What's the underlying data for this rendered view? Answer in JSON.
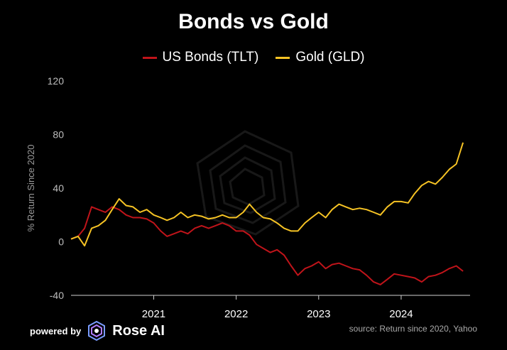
{
  "chart_data": {
    "type": "line",
    "title": "Bonds vs Gold",
    "ylabel": "% Return Since 2020",
    "xlabel": "",
    "ylim": [
      -40,
      120
    ],
    "yticks": [
      -40,
      0,
      40,
      80,
      120
    ],
    "xticks": [
      "2021",
      "2022",
      "2023",
      "2024"
    ],
    "legend_position": "top-center",
    "grid": false,
    "series": [
      {
        "name": "US Bonds (TLT)",
        "color": "#c0141a",
        "x": [
          "2020-01",
          "2020-02",
          "2020-03",
          "2020-04",
          "2020-05",
          "2020-06",
          "2020-07",
          "2020-08",
          "2020-09",
          "2020-10",
          "2020-11",
          "2020-12",
          "2021-01",
          "2021-02",
          "2021-03",
          "2021-04",
          "2021-05",
          "2021-06",
          "2021-07",
          "2021-08",
          "2021-09",
          "2021-10",
          "2021-11",
          "2021-12",
          "2022-01",
          "2022-02",
          "2022-03",
          "2022-04",
          "2022-05",
          "2022-06",
          "2022-07",
          "2022-08",
          "2022-09",
          "2022-10",
          "2022-11",
          "2022-12",
          "2023-01",
          "2023-02",
          "2023-03",
          "2023-04",
          "2023-05",
          "2023-06",
          "2023-07",
          "2023-08",
          "2023-09",
          "2023-10",
          "2023-11",
          "2023-12",
          "2024-01",
          "2024-02",
          "2024-03",
          "2024-04",
          "2024-05",
          "2024-06",
          "2024-07",
          "2024-08",
          "2024-09",
          "2024-10"
        ],
        "values": [
          2,
          4,
          10,
          26,
          24,
          22,
          26,
          24,
          20,
          18,
          18,
          17,
          14,
          8,
          4,
          6,
          8,
          6,
          10,
          12,
          10,
          12,
          14,
          12,
          8,
          8,
          5,
          -2,
          -5,
          -8,
          -6,
          -10,
          -18,
          -25,
          -20,
          -18,
          -15,
          -20,
          -17,
          -16,
          -18,
          -20,
          -21,
          -25,
          -30,
          -32,
          -28,
          -24,
          -25,
          -26,
          -27,
          -30,
          -26,
          -25,
          -23,
          -20,
          -18,
          -22
        ],
        "ylabel_series": ""
      },
      {
        "name": "Gold (GLD)",
        "color": "#f6c324",
        "x": [
          "2020-01",
          "2020-02",
          "2020-03",
          "2020-04",
          "2020-05",
          "2020-06",
          "2020-07",
          "2020-08",
          "2020-09",
          "2020-10",
          "2020-11",
          "2020-12",
          "2021-01",
          "2021-02",
          "2021-03",
          "2021-04",
          "2021-05",
          "2021-06",
          "2021-07",
          "2021-08",
          "2021-09",
          "2021-10",
          "2021-11",
          "2021-12",
          "2022-01",
          "2022-02",
          "2022-03",
          "2022-04",
          "2022-05",
          "2022-06",
          "2022-07",
          "2022-08",
          "2022-09",
          "2022-10",
          "2022-11",
          "2022-12",
          "2023-01",
          "2023-02",
          "2023-03",
          "2023-04",
          "2023-05",
          "2023-06",
          "2023-07",
          "2023-08",
          "2023-09",
          "2023-10",
          "2023-11",
          "2023-12",
          "2024-01",
          "2024-02",
          "2024-03",
          "2024-04",
          "2024-05",
          "2024-06",
          "2024-07",
          "2024-08",
          "2024-09",
          "2024-10"
        ],
        "values": [
          2,
          4,
          -3,
          10,
          12,
          16,
          24,
          32,
          27,
          26,
          22,
          24,
          20,
          18,
          16,
          18,
          22,
          18,
          20,
          19,
          17,
          18,
          20,
          18,
          18,
          22,
          28,
          22,
          18,
          17,
          14,
          10,
          8,
          8,
          14,
          18,
          22,
          18,
          24,
          28,
          26,
          24,
          25,
          24,
          22,
          20,
          26,
          30,
          30,
          29,
          36,
          42,
          45,
          43,
          48,
          54,
          58,
          74
        ]
      }
    ]
  },
  "footer": {
    "powered_by": "powered by",
    "brand_name": "Rose AI",
    "source": "source: Return since 2020, Yahoo"
  }
}
